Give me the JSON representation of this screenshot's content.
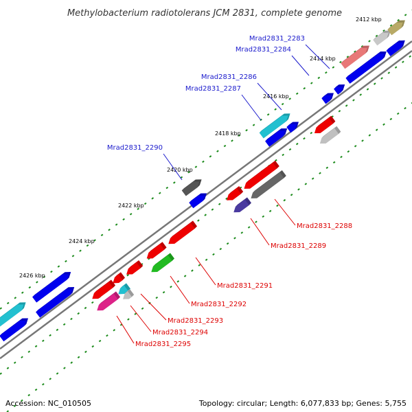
{
  "title": "Methylobacterium radiotolerans JCM 2831, complete genome",
  "footer": {
    "accession": "Accession: NC_010505",
    "summary": "Topology: circular; Length: 6,077,833 bp; Genes: 5,755"
  },
  "ticks": [
    "2412 kbp",
    "2414 kbp",
    "2416 kbp",
    "2418 kbp",
    "2420 kbp",
    "2422 kbp",
    "2424 kbp",
    "2426 kbp"
  ],
  "forward_labels": [
    "Mrad2831_2283",
    "Mrad2831_2284",
    "Mrad2831_2286",
    "Mrad2831_2287",
    "Mrad2831_2290"
  ],
  "reverse_labels": [
    "Mrad2831_2288",
    "Mrad2831_2289",
    "Mrad2831_2291",
    "Mrad2831_2292",
    "Mrad2831_2293",
    "Mrad2831_2294",
    "Mrad2831_2295"
  ],
  "colors": {
    "forward_label": "#1a1acc",
    "reverse_label": "#dd0000",
    "blue": "#0000ee",
    "red": "#ee0000",
    "tick": "#1a8a1a",
    "backbone": "#777777"
  }
}
